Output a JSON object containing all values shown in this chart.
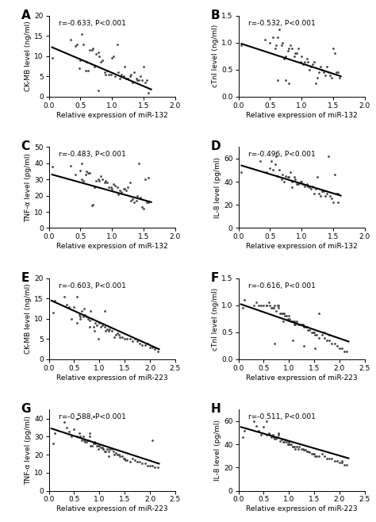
{
  "panels": [
    {
      "label": "A",
      "annotation": "r=-0.633, P<0.001",
      "ylabel": "CK-MB level (ng/ml)",
      "xlabel": "Relative expression of miR-132",
      "xlim": [
        0.0,
        2.0
      ],
      "ylim": [
        0,
        20
      ],
      "yticks": [
        0,
        5,
        10,
        15,
        20
      ],
      "xticks": [
        0.0,
        0.5,
        1.0,
        1.5,
        2.0
      ],
      "line_x": [
        0.05,
        1.62
      ],
      "line_y": [
        12.2,
        1.8
      ],
      "scatter_x": [
        0.05,
        0.35,
        0.42,
        0.45,
        0.48,
        0.5,
        0.52,
        0.55,
        0.58,
        0.6,
        0.62,
        0.65,
        0.68,
        0.7,
        0.72,
        0.75,
        0.78,
        0.8,
        0.82,
        0.85,
        0.88,
        0.9,
        0.92,
        0.95,
        0.98,
        1.0,
        1.02,
        1.05,
        1.08,
        1.1,
        1.12,
        1.15,
        1.18,
        1.2,
        1.22,
        1.25,
        1.28,
        1.3,
        1.32,
        1.35,
        1.38,
        1.4,
        1.42,
        1.45,
        1.48,
        1.5,
        1.52,
        1.55,
        1.58,
        0.78
      ],
      "scatter_y": [
        9.5,
        14.0,
        12.5,
        13.0,
        7.0,
        9.0,
        15.5,
        13.0,
        6.5,
        8.5,
        6.5,
        11.5,
        11.5,
        12.0,
        7.5,
        10.5,
        11.0,
        10.0,
        8.5,
        9.0,
        6.0,
        5.5,
        6.5,
        5.5,
        5.5,
        9.5,
        10.0,
        5.0,
        13.0,
        6.0,
        4.5,
        5.5,
        5.0,
        7.5,
        4.5,
        4.5,
        5.0,
        5.5,
        3.5,
        6.0,
        4.5,
        4.0,
        4.0,
        5.0,
        4.0,
        7.5,
        3.5,
        4.0,
        1.0,
        1.5
      ]
    },
    {
      "label": "B",
      "annotation": "r=-0.532, P<0.001",
      "ylabel": "cTnI level (ng/ml)",
      "xlabel": "Relative expression of miR-132",
      "xlim": [
        0.0,
        2.0
      ],
      "ylim": [
        0.0,
        1.5
      ],
      "yticks": [
        0.0,
        0.5,
        1.0,
        1.5
      ],
      "xticks": [
        0.0,
        0.5,
        1.0,
        1.5,
        2.0
      ],
      "line_x": [
        0.05,
        1.62
      ],
      "line_y": [
        0.98,
        0.38
      ],
      "scatter_x": [
        0.05,
        0.42,
        0.5,
        0.55,
        0.58,
        0.6,
        0.62,
        0.65,
        0.68,
        0.7,
        0.72,
        0.75,
        0.78,
        0.8,
        0.82,
        0.85,
        0.88,
        0.9,
        0.92,
        0.95,
        0.98,
        1.0,
        1.02,
        1.05,
        1.08,
        1.1,
        1.12,
        1.15,
        1.18,
        1.2,
        1.22,
        1.25,
        1.28,
        1.3,
        1.32,
        1.35,
        1.38,
        1.4,
        1.42,
        1.45,
        1.48,
        1.5,
        1.52,
        1.55,
        1.58,
        1.6,
        0.75,
        0.8,
        0.62
      ],
      "scatter_y": [
        0.95,
        1.05,
        1.0,
        1.1,
        0.9,
        0.95,
        1.1,
        1.25,
        0.95,
        1.0,
        0.7,
        0.75,
        0.85,
        0.9,
        0.95,
        0.9,
        0.75,
        0.8,
        0.8,
        0.9,
        0.65,
        0.75,
        0.6,
        0.65,
        0.7,
        0.65,
        0.5,
        0.55,
        0.6,
        0.65,
        0.25,
        0.35,
        0.45,
        0.55,
        0.5,
        0.45,
        0.4,
        0.55,
        0.45,
        0.4,
        0.35,
        0.9,
        0.8,
        0.45,
        0.45,
        0.35,
        0.3,
        0.25,
        0.3
      ]
    },
    {
      "label": "C",
      "annotation": "r=-0.483, P<0.001",
      "ylabel": "TNF-α level (pg/ml)",
      "xlabel": "Relative expression of miR-132",
      "xlim": [
        0.0,
        2.0
      ],
      "ylim": [
        0,
        50
      ],
      "yticks": [
        0,
        10,
        20,
        30,
        40,
        50
      ],
      "xticks": [
        0.0,
        0.5,
        1.0,
        1.5,
        2.0
      ],
      "line_x": [
        0.05,
        1.62
      ],
      "line_y": [
        33.0,
        16.0
      ],
      "scatter_x": [
        0.05,
        0.35,
        0.42,
        0.5,
        0.52,
        0.55,
        0.58,
        0.6,
        0.62,
        0.65,
        0.68,
        0.7,
        0.72,
        0.75,
        0.78,
        0.8,
        0.82,
        0.85,
        0.88,
        0.9,
        0.92,
        0.95,
        0.98,
        1.0,
        1.02,
        1.05,
        1.08,
        1.1,
        1.12,
        1.15,
        1.18,
        1.2,
        1.22,
        1.25,
        1.28,
        1.3,
        1.32,
        1.35,
        1.38,
        1.4,
        1.42,
        1.45,
        1.48,
        1.5,
        1.52,
        1.55,
        1.58,
        0.52,
        1.58
      ],
      "scatter_y": [
        38.0,
        38.5,
        33.0,
        35.5,
        30.0,
        29.0,
        33.0,
        35.0,
        34.0,
        34.0,
        14.0,
        14.5,
        25.0,
        29.0,
        30.0,
        29.0,
        32.0,
        30.0,
        28.0,
        29.0,
        28.0,
        25.0,
        25.0,
        24.0,
        27.0,
        26.0,
        25.0,
        21.0,
        23.0,
        22.0,
        24.0,
        24.0,
        23.0,
        25.0,
        28.0,
        17.0,
        18.0,
        16.0,
        17.0,
        20.0,
        40.0,
        19.0,
        13.0,
        12.0,
        30.0,
        16.0,
        16.0,
        40.0,
        31.0
      ]
    },
    {
      "label": "D",
      "annotation": "r=-0.496, P<0.001",
      "ylabel": "IL-8 level (pg/ml)",
      "xlabel": "Relative expression of miR-132",
      "xlim": [
        0.0,
        2.0
      ],
      "ylim": [
        0,
        70
      ],
      "yticks": [
        0,
        20,
        40,
        60
      ],
      "xticks": [
        0.0,
        0.5,
        1.0,
        1.5,
        2.0
      ],
      "line_x": [
        0.05,
        1.62
      ],
      "line_y": [
        54.0,
        28.0
      ],
      "scatter_x": [
        0.05,
        0.35,
        0.45,
        0.5,
        0.52,
        0.55,
        0.58,
        0.6,
        0.62,
        0.65,
        0.68,
        0.7,
        0.72,
        0.75,
        0.78,
        0.8,
        0.82,
        0.85,
        0.88,
        0.9,
        0.92,
        0.95,
        0.98,
        1.0,
        1.02,
        1.05,
        1.08,
        1.1,
        1.12,
        1.15,
        1.18,
        1.2,
        1.22,
        1.25,
        1.28,
        1.3,
        1.32,
        1.35,
        1.38,
        1.4,
        1.42,
        1.45,
        1.48,
        1.5,
        1.52,
        1.55,
        1.58,
        0.85,
        1.58
      ],
      "scatter_y": [
        48.0,
        58.0,
        48.0,
        52.0,
        58.0,
        50.0,
        55.0,
        62.0,
        45.0,
        50.0,
        42.0,
        46.0,
        40.0,
        45.0,
        44.0,
        44.0,
        48.0,
        40.0,
        44.0,
        42.0,
        38.0,
        38.0,
        40.0,
        40.0,
        38.0,
        36.0,
        38.0,
        36.0,
        35.0,
        34.0,
        36.0,
        30.0,
        34.0,
        44.0,
        30.0,
        28.0,
        32.0,
        32.0,
        28.0,
        30.0,
        62.0,
        28.0,
        26.0,
        22.0,
        46.0,
        30.0,
        30.0,
        35.0,
        22.0
      ]
    },
    {
      "label": "E",
      "annotation": "r=-0.603, P<0.001",
      "ylabel": "CK-MB level (ng/ml)",
      "xlabel": "Relative expression of miR-223",
      "xlim": [
        0.0,
        2.5
      ],
      "ylim": [
        0,
        20
      ],
      "yticks": [
        0,
        5,
        10,
        15,
        20
      ],
      "xticks": [
        0.0,
        0.5,
        1.0,
        1.5,
        2.0,
        2.5
      ],
      "line_x": [
        0.05,
        2.18
      ],
      "line_y": [
        14.5,
        2.5
      ],
      "scatter_x": [
        0.08,
        0.12,
        0.3,
        0.35,
        0.4,
        0.45,
        0.5,
        0.55,
        0.6,
        0.62,
        0.65,
        0.68,
        0.7,
        0.72,
        0.75,
        0.78,
        0.8,
        0.82,
        0.85,
        0.88,
        0.9,
        0.92,
        0.95,
        0.98,
        1.0,
        1.02,
        1.05,
        1.1,
        1.12,
        1.15,
        1.18,
        1.2,
        1.25,
        1.3,
        1.32,
        1.35,
        1.38,
        1.4,
        1.45,
        1.5,
        1.55,
        1.6,
        1.65,
        1.7,
        1.75,
        1.8,
        1.85,
        1.9,
        1.95,
        2.0,
        2.05,
        2.1,
        2.15,
        0.55,
        0.62,
        0.8,
        1.1
      ],
      "scatter_y": [
        11.5,
        14.5,
        15.5,
        13.5,
        13.0,
        10.0,
        13.0,
        9.0,
        11.0,
        10.5,
        12.0,
        10.5,
        12.5,
        11.0,
        10.5,
        10.0,
        8.0,
        12.0,
        10.0,
        8.0,
        7.0,
        9.0,
        8.5,
        5.0,
        9.0,
        8.0,
        8.5,
        8.0,
        7.0,
        7.5,
        7.0,
        7.5,
        7.0,
        5.5,
        6.0,
        6.5,
        6.0,
        5.5,
        5.5,
        5.0,
        5.0,
        5.0,
        4.5,
        5.0,
        4.5,
        4.0,
        3.5,
        3.5,
        4.0,
        3.0,
        3.0,
        2.5,
        2.0,
        15.5,
        10.0,
        9.5,
        12.0
      ]
    },
    {
      "label": "F",
      "annotation": "r=-0.616, P<0.001",
      "ylabel": "cTnI level (ng/ml)",
      "xlabel": "Relative expression of miR-223",
      "xlim": [
        0.0,
        2.5
      ],
      "ylim": [
        0.0,
        1.5
      ],
      "yticks": [
        0.0,
        0.5,
        1.0,
        1.5
      ],
      "xticks": [
        0.0,
        0.5,
        1.0,
        1.5,
        2.0,
        2.5
      ],
      "line_x": [
        0.05,
        2.18
      ],
      "line_y": [
        1.02,
        0.33
      ],
      "scatter_x": [
        0.08,
        0.12,
        0.3,
        0.35,
        0.4,
        0.45,
        0.5,
        0.55,
        0.6,
        0.62,
        0.65,
        0.68,
        0.7,
        0.72,
        0.75,
        0.78,
        0.8,
        0.82,
        0.85,
        0.88,
        0.9,
        0.92,
        0.95,
        0.98,
        1.0,
        1.02,
        1.05,
        1.08,
        1.1,
        1.12,
        1.15,
        1.18,
        1.2,
        1.25,
        1.28,
        1.3,
        1.32,
        1.35,
        1.38,
        1.4,
        1.45,
        1.48,
        1.5,
        1.52,
        1.55,
        1.6,
        1.65,
        1.7,
        1.75,
        1.8,
        1.85,
        1.9,
        1.95,
        2.0,
        2.05,
        2.1,
        2.15,
        0.55,
        0.8,
        1.1,
        0.72,
        0.88,
        1.08,
        1.3,
        1.52,
        1.6,
        1.7,
        1.8
      ],
      "scatter_y": [
        0.95,
        1.1,
        1.0,
        1.05,
        1.0,
        1.0,
        1.0,
        1.0,
        1.05,
        1.0,
        0.95,
        0.95,
        0.95,
        1.0,
        0.9,
        1.0,
        1.0,
        0.85,
        0.85,
        0.85,
        0.85,
        0.8,
        0.8,
        0.75,
        0.8,
        0.75,
        0.7,
        0.7,
        0.7,
        0.65,
        0.7,
        0.65,
        0.65,
        0.65,
        0.65,
        0.6,
        0.6,
        0.6,
        0.55,
        0.55,
        0.5,
        0.5,
        0.5,
        0.45,
        0.45,
        0.4,
        0.45,
        0.4,
        0.35,
        0.35,
        0.3,
        0.3,
        0.25,
        0.2,
        0.2,
        0.15,
        0.15,
        1.0,
        0.95,
        0.65,
        0.3,
        0.7,
        0.35,
        0.25,
        0.2,
        0.85,
        0.5,
        0.45
      ]
    },
    {
      "label": "G",
      "annotation": "r=-0.588, P<0.001",
      "ylabel": "TNF-α level (pg/ml)",
      "xlabel": "Relative expression of miR-223",
      "xlim": [
        0.0,
        2.5
      ],
      "ylim": [
        0,
        45
      ],
      "yticks": [
        0,
        10,
        20,
        30,
        40
      ],
      "xticks": [
        0.0,
        0.5,
        1.0,
        1.5,
        2.0,
        2.5
      ],
      "line_x": [
        0.05,
        2.18
      ],
      "line_y": [
        34.5,
        15.0
      ],
      "scatter_x": [
        0.08,
        0.12,
        0.3,
        0.35,
        0.4,
        0.45,
        0.5,
        0.55,
        0.6,
        0.62,
        0.65,
        0.68,
        0.7,
        0.72,
        0.75,
        0.78,
        0.8,
        0.82,
        0.85,
        0.88,
        0.9,
        0.92,
        0.95,
        0.98,
        1.0,
        1.02,
        1.05,
        1.08,
        1.1,
        1.12,
        1.15,
        1.18,
        1.2,
        1.25,
        1.28,
        1.3,
        1.32,
        1.35,
        1.38,
        1.4,
        1.45,
        1.48,
        1.5,
        1.52,
        1.55,
        1.6,
        1.65,
        1.7,
        1.75,
        1.8,
        1.85,
        1.9,
        1.95,
        2.0,
        2.05,
        2.1,
        2.15,
        0.55,
        0.8,
        0.88,
        0.98,
        1.08,
        1.18,
        2.05
      ],
      "scatter_y": [
        26.0,
        32.0,
        38.0,
        35.0,
        33.0,
        30.0,
        34.0,
        30.0,
        32.0,
        30.0,
        28.0,
        30.0,
        28.0,
        27.0,
        27.0,
        28.0,
        32.0,
        25.0,
        25.0,
        26.0,
        27.0,
        26.0,
        25.0,
        23.0,
        25.0,
        24.0,
        24.0,
        23.0,
        22.0,
        22.0,
        23.0,
        22.0,
        23.0,
        23.0,
        22.0,
        20.0,
        21.0,
        20.0,
        20.0,
        19.0,
        19.0,
        18.0,
        18.0,
        17.0,
        17.0,
        16.0,
        18.0,
        17.0,
        16.0,
        16.0,
        15.0,
        15.0,
        14.0,
        14.0,
        14.0,
        13.0,
        13.0,
        40.0,
        30.0,
        41.0,
        25.0,
        23.0,
        19.0,
        28.0
      ]
    },
    {
      "label": "H",
      "annotation": "r=-0.511, P<0.001",
      "ylabel": "IL-8 level (pg/ml)",
      "xlabel": "Relative expression of miR-223",
      "xlim": [
        0.0,
        2.5
      ],
      "ylim": [
        0,
        70
      ],
      "yticks": [
        0,
        20,
        40,
        60
      ],
      "xticks": [
        0.0,
        0.5,
        1.0,
        1.5,
        2.0,
        2.5
      ],
      "line_x": [
        0.05,
        2.18
      ],
      "line_y": [
        55.0,
        28.0
      ],
      "scatter_x": [
        0.08,
        0.12,
        0.3,
        0.35,
        0.4,
        0.45,
        0.5,
        0.55,
        0.6,
        0.62,
        0.65,
        0.68,
        0.7,
        0.72,
        0.75,
        0.78,
        0.8,
        0.82,
        0.85,
        0.88,
        0.9,
        0.92,
        0.95,
        0.98,
        1.0,
        1.02,
        1.05,
        1.08,
        1.1,
        1.12,
        1.15,
        1.18,
        1.2,
        1.25,
        1.28,
        1.3,
        1.32,
        1.35,
        1.38,
        1.4,
        1.45,
        1.48,
        1.5,
        1.52,
        1.55,
        1.6,
        1.65,
        1.7,
        1.75,
        1.8,
        1.85,
        1.9,
        1.95,
        2.0,
        2.05,
        2.1,
        2.15,
        0.55,
        0.8,
        0.98,
        1.08,
        2.05
      ],
      "scatter_y": [
        46.0,
        52.0,
        60.0,
        56.0,
        52.0,
        48.0,
        55.0,
        48.0,
        50.0,
        48.0,
        46.0,
        48.0,
        46.0,
        45.0,
        45.0,
        46.0,
        50.0,
        43.0,
        44.0,
        42.0,
        42.0,
        44.0,
        42.0,
        40.0,
        42.0,
        40.0,
        40.0,
        38.0,
        38.0,
        36.0,
        38.0,
        36.0,
        38.0,
        36.0,
        36.0,
        35.0,
        35.0,
        34.0,
        34.0,
        33.0,
        32.0,
        32.0,
        32.0,
        30.0,
        30.0,
        30.0,
        32.0,
        30.0,
        28.0,
        28.0,
        28.0,
        26.0,
        26.0,
        24.0,
        24.0,
        22.0,
        22.0,
        60.0,
        48.0,
        40.0,
        38.0,
        26.0
      ]
    }
  ],
  "scatter_color": "#444444",
  "line_color": "#000000",
  "marker_size": 4,
  "line_width": 1.5,
  "font_size": 6.5,
  "label_font_size": 11,
  "annot_font_size": 6.5
}
